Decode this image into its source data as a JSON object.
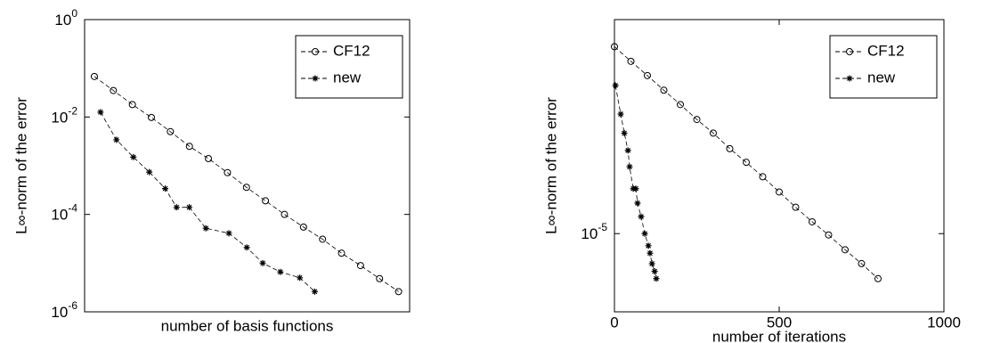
{
  "chart_data": [
    {
      "type": "line",
      "xlabel": "number of basis functions",
      "ylabel": "L∞-norm of the error",
      "xlim": [
        0,
        100
      ],
      "ylim": [
        1e-06,
        1
      ],
      "ylog": true,
      "yticks": [
        {
          "value": 1,
          "label": "10",
          "exponent": "0"
        },
        {
          "value": 0.01,
          "label": "10",
          "exponent": "-2"
        },
        {
          "value": 0.0001,
          "label": "10",
          "exponent": "-4"
        },
        {
          "value": 1e-06,
          "label": "10",
          "exponent": "-6"
        }
      ],
      "legend": "northeast",
      "series": [
        {
          "name": "CF12",
          "color": "#000000",
          "marker": "circle",
          "x": [
            3,
            8.85,
            14.7,
            20.55,
            26.4,
            32.25,
            38.1,
            43.95,
            49.8,
            55.65,
            61.5,
            67.35,
            73.2,
            79.05,
            84.9,
            90.75,
            96.6
          ],
          "values": [
            0.068,
            0.035,
            0.018,
            0.0098,
            0.005,
            0.0025,
            0.0014,
            0.00072,
            0.00036,
            0.00019,
            0.0001,
            5.5e-05,
            3.1e-05,
            1.6e-05,
            8.9e-06,
            4.8e-06,
            2.6e-06
          ]
        },
        {
          "name": "new",
          "color": "#000000",
          "marker": "star",
          "x": [
            4.9,
            9.8,
            15,
            19.9,
            24.8,
            28.3,
            32.2,
            37.3,
            44.4,
            49.9,
            54.8,
            60.2,
            66.2,
            70.8
          ],
          "values": [
            0.0126,
            0.0034,
            0.0015,
            0.00074,
            0.00034,
            0.00014,
            0.00014,
            5.2e-05,
            4.1e-05,
            2.1e-05,
            1e-05,
            6.6e-06,
            5e-06,
            2.6e-06
          ]
        }
      ]
    },
    {
      "type": "line",
      "xlabel": "number of iterations",
      "ylabel": "L∞-norm of the error",
      "xlim": [
        0,
        1000
      ],
      "xticks": [
        0,
        500,
        1000
      ],
      "ylim": [
        3e-06,
        0.00027
      ],
      "ylog": true,
      "yticks": [
        {
          "value": 1e-05,
          "label": "10",
          "exponent": "-5"
        }
      ],
      "legend": "northeast",
      "series": [
        {
          "name": "CF12",
          "color": "#000000",
          "marker": "circle",
          "x": [
            0,
            50,
            100,
            150,
            200,
            250,
            300,
            350,
            400,
            450,
            500,
            550,
            600,
            650,
            700,
            750,
            800
          ],
          "values": [
            0.000178,
            0.000142,
            0.000114,
            9.1e-05,
            7.3e-05,
            5.8e-05,
            4.7e-05,
            3.7e-05,
            3e-05,
            2.4e-05,
            1.9e-05,
            1.5e-05,
            1.2e-05,
            9.8e-06,
            7.8e-06,
            6.3e-06,
            5e-06
          ]
        },
        {
          "name": "new",
          "color": "#000000",
          "marker": "star",
          "x": [
            3,
            19,
            30,
            41,
            46,
            57,
            65,
            70,
            81,
            92,
            103,
            108,
            114,
            122,
            127
          ],
          "values": [
            9.8e-05,
            6.3e-05,
            4.7e-05,
            3.6e-05,
            2.8e-05,
            2e-05,
            2e-05,
            1.6e-05,
            1.3e-05,
            1e-05,
            8.3e-06,
            7.4e-06,
            6.3e-06,
            5.6e-06,
            5e-06
          ]
        }
      ]
    }
  ]
}
